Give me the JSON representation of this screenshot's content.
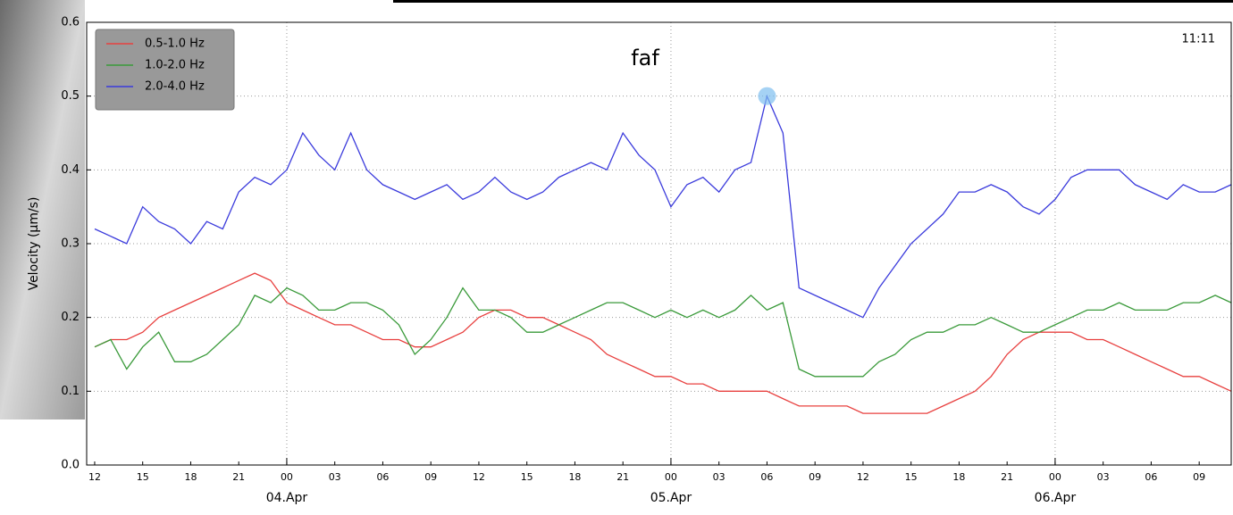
{
  "chart_data": {
    "type": "line",
    "title": "faf",
    "timestamp": "11:11",
    "y_label": "Velocity (μm/s)",
    "x": [
      -12,
      -11,
      -10,
      -9,
      -8,
      -7,
      -6,
      -5,
      -4,
      -3,
      -2,
      -1,
      0,
      1,
      2,
      3,
      4,
      5,
      6,
      7,
      8,
      9,
      10,
      11,
      12,
      13,
      14,
      15,
      16,
      17,
      18,
      19,
      20,
      21,
      22,
      23,
      24,
      25,
      26,
      27,
      28,
      29,
      30,
      31,
      32,
      33,
      34,
      35,
      36,
      37,
      38,
      39,
      40,
      41,
      42,
      43,
      44,
      45,
      46,
      47,
      48,
      49,
      50,
      51,
      52,
      53,
      54,
      55,
      56,
      57,
      58,
      59
    ],
    "series": [
      {
        "name": "0.5-1.0 Hz",
        "color": "#e8403f",
        "values": [
          0.16,
          0.17,
          0.17,
          0.18,
          0.2,
          0.21,
          0.22,
          0.23,
          0.24,
          0.25,
          0.26,
          0.25,
          0.22,
          0.21,
          0.2,
          0.19,
          0.19,
          0.18,
          0.17,
          0.17,
          0.16,
          0.16,
          0.17,
          0.18,
          0.2,
          0.21,
          0.21,
          0.2,
          0.2,
          0.19,
          0.18,
          0.17,
          0.15,
          0.14,
          0.13,
          0.12,
          0.12,
          0.11,
          0.11,
          0.1,
          0.1,
          0.1,
          0.1,
          0.09,
          0.08,
          0.08,
          0.08,
          0.08,
          0.07,
          0.07,
          0.07,
          0.07,
          0.07,
          0.08,
          0.09,
          0.1,
          0.12,
          0.15,
          0.17,
          0.18,
          0.18,
          0.18,
          0.17,
          0.17,
          0.16,
          0.15,
          0.14,
          0.13,
          0.12,
          0.12,
          0.11,
          0.1
        ]
      },
      {
        "name": "1.0-2.0 Hz",
        "color": "#3a9a3a",
        "values": [
          0.16,
          0.17,
          0.13,
          0.16,
          0.18,
          0.14,
          0.14,
          0.15,
          0.17,
          0.19,
          0.23,
          0.22,
          0.24,
          0.23,
          0.21,
          0.21,
          0.22,
          0.22,
          0.21,
          0.19,
          0.15,
          0.17,
          0.2,
          0.24,
          0.21,
          0.21,
          0.2,
          0.18,
          0.18,
          0.19,
          0.2,
          0.21,
          0.22,
          0.22,
          0.21,
          0.2,
          0.21,
          0.2,
          0.21,
          0.2,
          0.21,
          0.23,
          0.21,
          0.22,
          0.13,
          0.12,
          0.12,
          0.12,
          0.12,
          0.14,
          0.15,
          0.17,
          0.18,
          0.18,
          0.19,
          0.19,
          0.2,
          0.19,
          0.18,
          0.18,
          0.19,
          0.2,
          0.21,
          0.21,
          0.22,
          0.21,
          0.21,
          0.21,
          0.22,
          0.22,
          0.23,
          0.22
        ]
      },
      {
        "name": "2.0-4.0 Hz",
        "color": "#3b3bdc",
        "values": [
          0.32,
          0.31,
          0.3,
          0.35,
          0.33,
          0.32,
          0.3,
          0.33,
          0.32,
          0.37,
          0.39,
          0.38,
          0.4,
          0.45,
          0.42,
          0.4,
          0.45,
          0.4,
          0.38,
          0.37,
          0.36,
          0.37,
          0.38,
          0.36,
          0.37,
          0.39,
          0.37,
          0.36,
          0.37,
          0.39,
          0.4,
          0.41,
          0.4,
          0.45,
          0.42,
          0.4,
          0.35,
          0.38,
          0.39,
          0.37,
          0.4,
          0.41,
          0.5,
          0.45,
          0.24,
          0.23,
          0.22,
          0.21,
          0.2,
          0.24,
          0.27,
          0.3,
          0.32,
          0.34,
          0.37,
          0.37,
          0.38,
          0.37,
          0.35,
          0.34,
          0.36,
          0.39,
          0.4,
          0.4,
          0.4,
          0.38,
          0.37,
          0.36,
          0.38,
          0.37,
          0.37,
          0.38
        ]
      }
    ],
    "xlim": [
      -12.5,
      59
    ],
    "xticks": [
      {
        "value": -12,
        "label": "12"
      },
      {
        "value": -9,
        "label": "15"
      },
      {
        "value": -6,
        "label": "18"
      },
      {
        "value": -3,
        "label": "21"
      },
      {
        "value": 0,
        "label": "00"
      },
      {
        "value": 3,
        "label": "03"
      },
      {
        "value": 6,
        "label": "06"
      },
      {
        "value": 9,
        "label": "09"
      },
      {
        "value": 12,
        "label": "12"
      },
      {
        "value": 15,
        "label": "15"
      },
      {
        "value": 18,
        "label": "18"
      },
      {
        "value": 21,
        "label": "21"
      },
      {
        "value": 24,
        "label": "00"
      },
      {
        "value": 27,
        "label": "03"
      },
      {
        "value": 30,
        "label": "06"
      },
      {
        "value": 33,
        "label": "09"
      },
      {
        "value": 36,
        "label": "12"
      },
      {
        "value": 39,
        "label": "15"
      },
      {
        "value": 42,
        "label": "18"
      },
      {
        "value": 45,
        "label": "21"
      },
      {
        "value": 48,
        "label": "00"
      },
      {
        "value": 51,
        "label": "03"
      },
      {
        "value": 54,
        "label": "06"
      },
      {
        "value": 57,
        "label": "09"
      }
    ],
    "day_ticks": [
      {
        "value": 0,
        "label": "04.Apr"
      },
      {
        "value": 24,
        "label": "05.Apr"
      },
      {
        "value": 48,
        "label": "06.Apr"
      }
    ],
    "ylim": [
      0,
      0.6
    ],
    "yticks": [
      {
        "value": 0,
        "label": "0.0"
      },
      0.1,
      0.2,
      0.3,
      0.4,
      0.5,
      0.6
    ],
    "grid": true,
    "legend": "upper left"
  }
}
